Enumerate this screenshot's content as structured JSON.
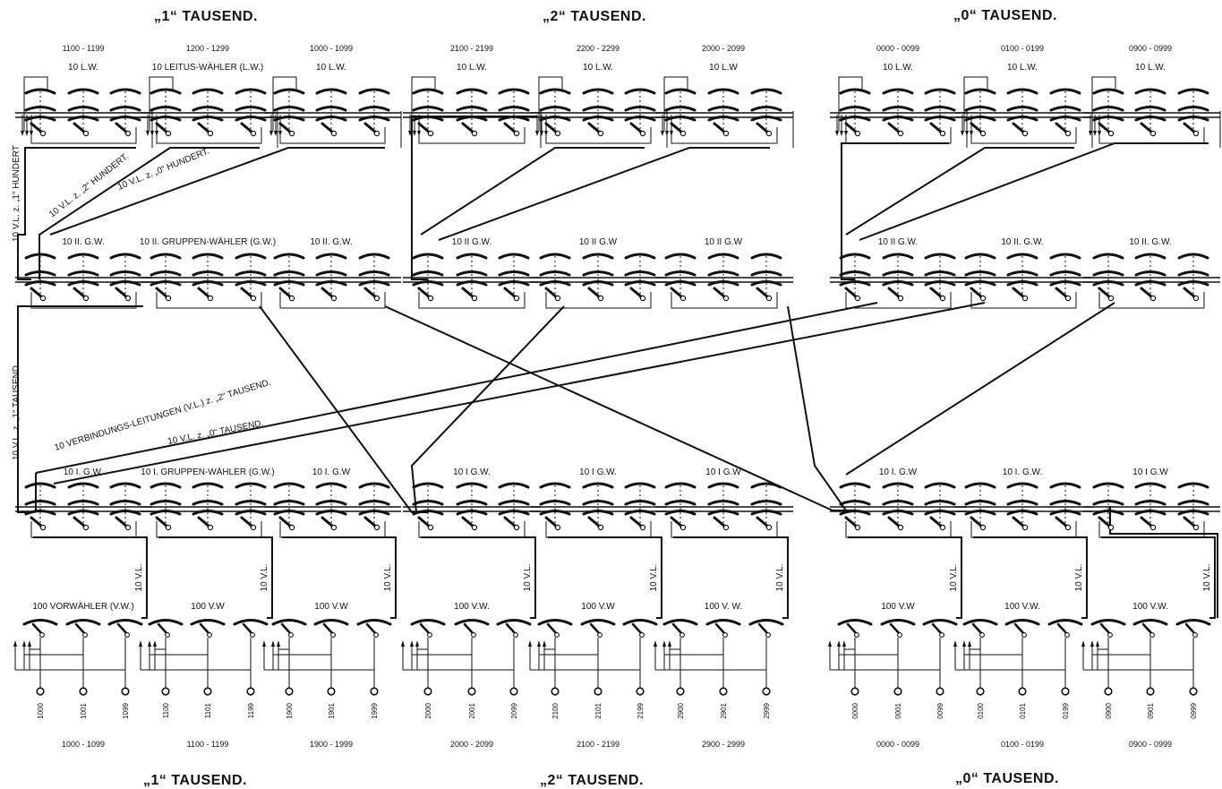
{
  "top_titles": [
    "„1“ TAUSEND.",
    "„2“ TAUSEND.",
    "„0“ TAUSEND."
  ],
  "bottom_titles": [
    "„1“ TAUSEND.",
    "„2“ TAUSEND.",
    "„0“ TAUSEND."
  ],
  "lw_ranges": [
    "1100 - 1199",
    "1200 - 1299",
    "1000 - 1099",
    "2100 - 2199",
    "2200 - 2299",
    "2000 - 2099",
    "0000 - 0099",
    "0100 - 0199",
    "0900 - 0999"
  ],
  "lw_labels": [
    "10 L.W.",
    "10 LEITUS-WÄHLER (L.W.)",
    "10 L.W.",
    "10 L.W.",
    "10 L.W.",
    "10 L.W",
    "10 L.W.",
    "10 L.W.",
    "10 L.W."
  ],
  "gw2_labels": [
    "10 II. G.W.",
    "10 II. GRUPPEN-WÄHLER (G.W.)",
    "10 II. G.W.",
    "10 II G.W.",
    "10 II G.W",
    "10 II G.W",
    "10 II G.W.",
    "10 II. G.W.",
    "10 II. G.W."
  ],
  "gw1_labels": [
    "10 I. G.W.",
    "10 I. GRUPPEN-WÄHLER (G.W.)",
    "10 I. G.W",
    "10 I G.W.",
    "10 I G.W.",
    "10 I G.W",
    "10 I. G.W",
    "10 I. G.W.",
    "10 I G.W"
  ],
  "vw_labels": [
    "100 VORWÄHLER (V.W.)",
    "100 V.W",
    "100 V.W",
    "100 V.W.",
    "100 V.W",
    "100 V. W.",
    "100 V.W",
    "100 V.W.",
    "100 V.W."
  ],
  "vl_side_label": "10 V.L.",
  "subscriber_numbers": [
    [
      "1000",
      "1001",
      "1099"
    ],
    [
      "1100",
      "1101",
      "1199"
    ],
    [
      "1900",
      "1901",
      "1999"
    ],
    [
      "2000",
      "2001",
      "2099"
    ],
    [
      "2100",
      "2101",
      "2199"
    ],
    [
      "2900",
      "2901",
      "2999"
    ],
    [
      "0000",
      "0001",
      "0099"
    ],
    [
      "0100",
      "0101",
      "0199"
    ],
    [
      "0900",
      "0901",
      "0999"
    ]
  ],
  "bottom_ranges": [
    "1000 - 1099",
    "1100 - 1199",
    "1900 - 1999",
    "2000 - 2099",
    "2100 - 2199",
    "2900 - 2999",
    "0000 - 0099",
    "0100 - 0199",
    "0900 - 0999"
  ],
  "connection_labels": {
    "vl_1_hundert": "10 V.L. z. „1“ HUNDERT",
    "vl_2_hundert": "10 V.L. z. „2“ HUNDERT.",
    "vl_0_hundert": "10 V.L. z. „0“ HUNDERT.",
    "vl_1_tausend": "10 V.L. z. „1“ TAUSEND",
    "vl_2_tausend": "10 VERBINDUNGS-LEITUNGEN (V.L.) z. „2“ TAUSEND.",
    "vl_0_tausend": "10 V.L. z. „0“ TAUSEND."
  }
}
